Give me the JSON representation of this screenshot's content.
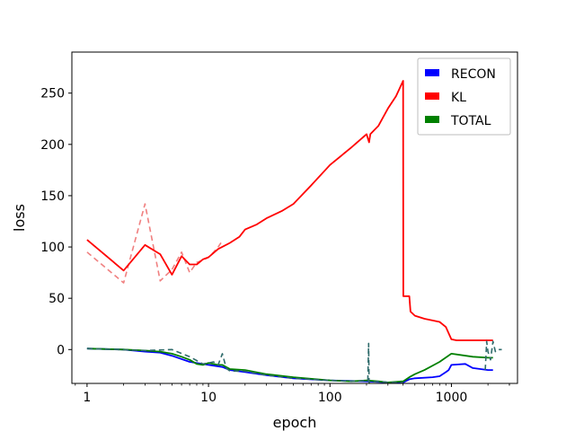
{
  "chart_data": {
    "type": "line",
    "title": "",
    "xlabel": "epoch",
    "ylabel": "loss",
    "xscale": "log",
    "xlim": [
      0.75,
      3500
    ],
    "ylim": [
      -33,
      290
    ],
    "x_ticks": [
      1,
      10,
      100,
      1000
    ],
    "x_tick_labels": [
      "1",
      "10",
      "100",
      "1000"
    ],
    "y_ticks": [
      0,
      50,
      100,
      150,
      200,
      250
    ],
    "y_tick_labels": [
      "0",
      "50",
      "100",
      "150",
      "200",
      "250"
    ],
    "grid": false,
    "legend": {
      "position": "top-right",
      "entries": [
        {
          "label": "RECON",
          "color": "#0000ff"
        },
        {
          "label": "KL",
          "color": "#ff0000"
        },
        {
          "label": "TOTAL",
          "color": "#008000"
        }
      ]
    },
    "series": [
      {
        "name": "KL",
        "color": "#ff0000",
        "style": "raw-dashed",
        "stroke": "#f08080",
        "x": [
          1,
          2,
          3,
          4,
          5,
          6,
          7,
          8,
          9,
          10,
          11,
          12,
          13
        ],
        "y": [
          95,
          65,
          142,
          67,
          78,
          95,
          75,
          85,
          87,
          90,
          95,
          100,
          106
        ]
      },
      {
        "name": "KL",
        "color": "#ff0000",
        "style": "smoothed",
        "x": [
          1,
          2,
          3,
          4,
          5,
          6,
          7,
          8,
          9,
          10,
          12,
          15,
          18,
          20,
          25,
          30,
          40,
          50,
          70,
          100,
          150,
          200,
          210,
          215,
          250,
          300,
          350,
          400,
          402,
          404,
          450,
          460,
          500,
          600,
          800,
          900,
          1000,
          1100,
          1500,
          2000,
          2200
        ],
        "y": [
          107,
          77,
          102,
          93,
          73,
          91,
          83,
          83,
          88,
          90,
          98,
          104,
          110,
          117,
          122,
          128,
          135,
          142,
          160,
          180,
          197,
          210,
          202,
          210,
          218,
          235,
          247,
          262,
          52,
          52,
          52,
          37,
          33,
          30,
          27,
          22,
          10,
          9,
          9,
          9,
          9
        ]
      },
      {
        "name": "RECON",
        "color": "#0000ff",
        "style": "smoothed",
        "x": [
          1,
          2,
          3,
          4,
          5,
          7,
          10,
          13,
          15,
          20,
          30,
          50,
          100,
          200,
          300,
          400,
          450,
          500,
          700,
          800,
          900,
          950,
          1000,
          1300,
          1500,
          2000,
          2200
        ],
        "y": [
          1,
          0,
          -2,
          -3,
          -6,
          -12,
          -15,
          -17,
          -20,
          -22,
          -25,
          -28,
          -30,
          -31,
          -32,
          -32,
          -29,
          -28,
          -27,
          -26,
          -22,
          -20,
          -15,
          -14,
          -18,
          -20,
          -20
        ]
      },
      {
        "name": "TOTAL",
        "color": "#008000",
        "style": "smoothed",
        "x": [
          1,
          2,
          3,
          4,
          5,
          6,
          7,
          8,
          9,
          10,
          12,
          13,
          15,
          20,
          30,
          50,
          100,
          150,
          200,
          250,
          300,
          400,
          450,
          500,
          600,
          800,
          1000,
          1500,
          2000,
          2200
        ],
        "y": [
          1,
          0,
          -1,
          -2,
          -4,
          -7,
          -10,
          -14,
          -15,
          -13,
          -15,
          -15,
          -19,
          -20,
          -24,
          -27,
          -30,
          -31,
          -30,
          -31,
          -32,
          -31,
          -27,
          -24,
          -20,
          -12,
          -4,
          -7,
          -8,
          -8
        ]
      },
      {
        "name": "TOTAL",
        "color": "#008000",
        "style": "raw-dashed",
        "stroke": "#2f6b6b",
        "x": [
          1,
          3,
          5,
          7,
          9,
          10,
          11,
          12,
          13,
          14,
          15,
          20,
          30,
          50,
          100,
          150,
          200,
          205,
          208,
          210,
          250,
          300,
          350,
          400
        ],
        "y": [
          1,
          -1,
          0,
          -7,
          -14,
          -13,
          -12,
          -15,
          -4,
          -18,
          -21,
          -21,
          -25,
          -28,
          -30,
          -31,
          -30,
          -30,
          6,
          -32,
          -31,
          -32,
          -32,
          -32
        ]
      },
      {
        "name": "TOTAL",
        "color": "#008000",
        "style": "raw-dashed",
        "stroke": "#2f6b6b",
        "x": [
          1900,
          1950,
          2000,
          2100,
          2200,
          2300,
          2400,
          2500,
          2600
        ],
        "y": [
          -20,
          8,
          -2,
          -10,
          8,
          -2,
          0,
          0,
          0
        ]
      }
    ]
  }
}
